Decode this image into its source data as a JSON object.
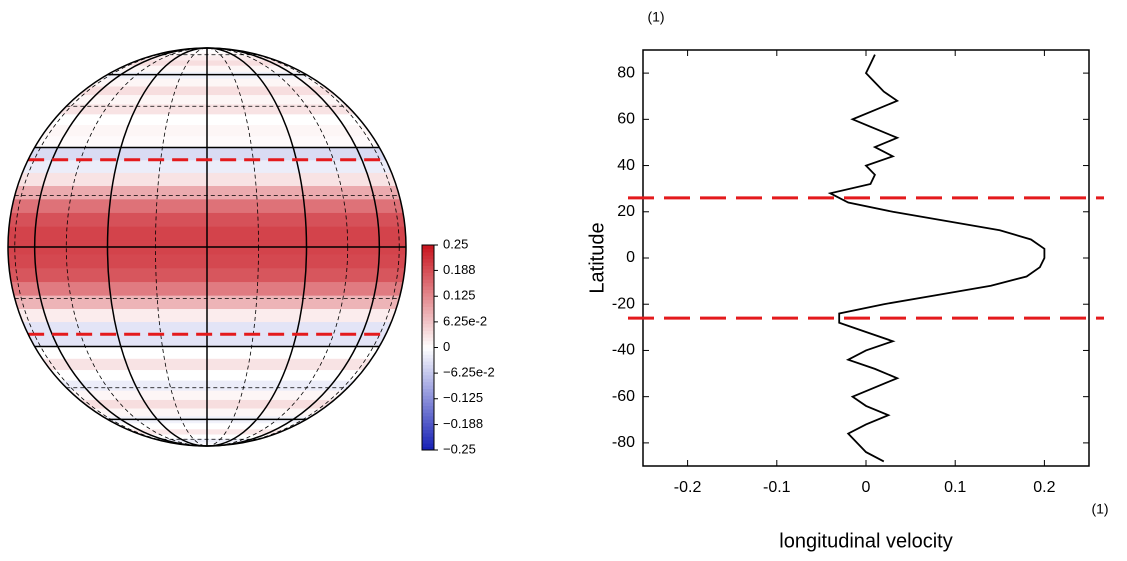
{
  "chart_data": [
    {
      "type": "globe",
      "colorbar": {
        "clim": [
          -0.25,
          0.25
        ],
        "cticks": [
          0.25,
          0.188,
          0.125,
          {
            "value": 0.0625,
            "label": "6.25e-2"
          },
          0,
          {
            "value": -0.0625,
            "label": "−6.25e-2"
          },
          {
            "value": -0.125,
            "label": "−0.125"
          },
          {
            "value": -0.188,
            "label": "−0.188"
          },
          {
            "value": -0.25,
            "label": "−0.25"
          }
        ]
      }
    },
    {
      "type": "line",
      "xlabel": "longitudinal velocity",
      "ylabel": "Latitude",
      "x_unit": "(1)",
      "y_unit": "(1)",
      "xlim": [
        -0.25,
        0.25
      ],
      "ylim": [
        -90,
        90
      ],
      "xticks": [
        -0.2,
        -0.1,
        0.0,
        0.1,
        0.2
      ],
      "yticks": [
        -80,
        -60,
        -40,
        -20,
        0,
        20,
        40,
        60,
        80
      ],
      "hlines": [
        26,
        -26
      ],
      "hline_color": "#e41a1c",
      "color": "#000000",
      "x": [
        0.02,
        0.0,
        -0.01,
        -0.02,
        0.0,
        0.025,
        0.0,
        -0.015,
        0.01,
        0.035,
        0.01,
        -0.02,
        0.0,
        0.03,
        0.0,
        -0.03,
        -0.03,
        0.02,
        0.08,
        0.14,
        0.18,
        0.195,
        0.2,
        0.2,
        0.185,
        0.15,
        0.09,
        0.03,
        -0.02,
        -0.04,
        0.005,
        0.01,
        0.0,
        0.03,
        0.01,
        0.035,
        0.01,
        -0.015,
        0.01,
        0.035,
        0.02,
        0.01,
        0.0,
        0.005,
        0.01
      ],
      "values": [
        -88,
        -84,
        -80,
        -76,
        -72,
        -68,
        -64,
        -60,
        -56,
        -52,
        -48,
        -44,
        -40,
        -36,
        -32,
        -28,
        -24,
        -20,
        -16,
        -12,
        -8,
        -4,
        0,
        4,
        8,
        12,
        16,
        20,
        24,
        28,
        32,
        36,
        40,
        44,
        48,
        52,
        56,
        60,
        64,
        68,
        72,
        76,
        80,
        84,
        88
      ]
    }
  ]
}
